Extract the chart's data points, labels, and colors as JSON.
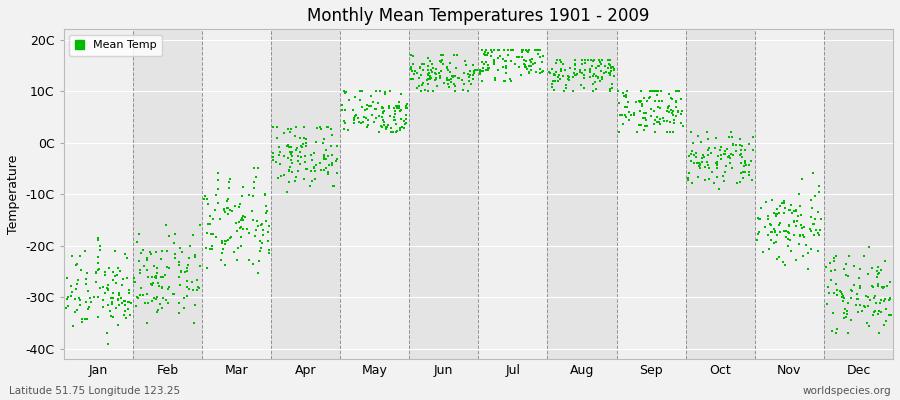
{
  "title": "Monthly Mean Temperatures 1901 - 2009",
  "ylabel": "Temperature",
  "xlabel": "",
  "subtitle_left": "Latitude 51.75 Longitude 123.25",
  "subtitle_right": "worldspecies.org",
  "ytick_labels": [
    "20C",
    "10C",
    "0C",
    "-10C",
    "-20C",
    "-30C",
    "-40C"
  ],
  "ytick_values": [
    20,
    10,
    0,
    -10,
    -20,
    -30,
    -40
  ],
  "ylim": [
    -42,
    22
  ],
  "months": [
    "Jan",
    "Feb",
    "Mar",
    "Apr",
    "May",
    "Jun",
    "Jul",
    "Aug",
    "Sep",
    "Oct",
    "Nov",
    "Dec"
  ],
  "dot_color": "#00bb00",
  "dot_size": 2.5,
  "background_color": "#f2f2f2",
  "stripe_color_light": "#f0f0f0",
  "stripe_color_dark": "#e4e4e4",
  "legend_label": "Mean Temp",
  "n_years": 109,
  "monthly_means": [
    -29.0,
    -26.5,
    -16.0,
    -2.5,
    6.0,
    13.5,
    16.0,
    13.5,
    6.5,
    -3.5,
    -16.0,
    -29.0
  ],
  "monthly_stds": [
    4.0,
    4.0,
    5.0,
    3.5,
    2.5,
    2.0,
    2.0,
    1.8,
    2.5,
    3.0,
    4.0,
    4.0
  ],
  "monthly_mins": [
    -39,
    -35,
    -30,
    -10,
    2,
    10,
    12,
    10,
    2,
    -9,
    -25,
    -37
  ],
  "monthly_maxs": [
    -18,
    -16,
    -5,
    3,
    10,
    17,
    18,
    16,
    10,
    2,
    -3,
    -20
  ]
}
